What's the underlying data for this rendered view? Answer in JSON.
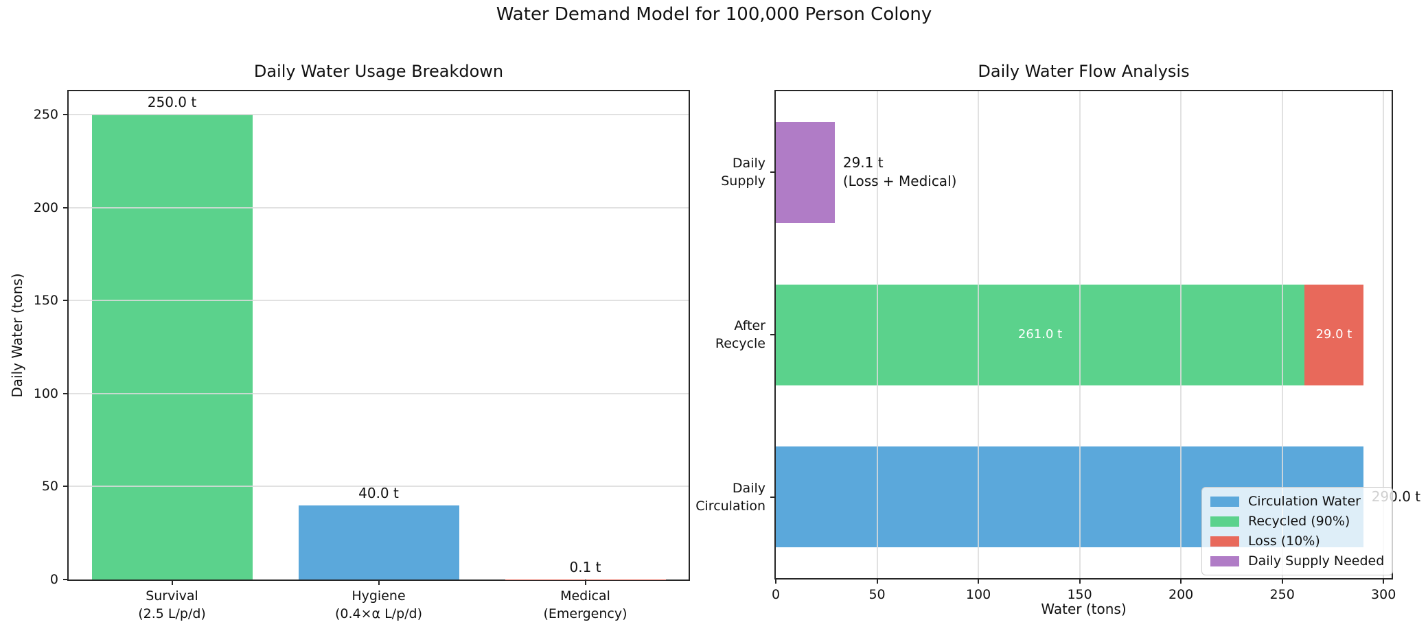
{
  "figure": {
    "title": "Water Demand Model for 100,000 Person Colony"
  },
  "colors": {
    "blue": "#5BA8DB",
    "green": "#5BD28C",
    "red": "#E8695B",
    "purple": "#B07CC6",
    "grid": "#DCDCDC",
    "spine": "#262626",
    "text": "#111111",
    "in_bar_text": "#FFFFFF",
    "legend_background": "rgba(255,255,255,0.8)",
    "legend_border": "#CCCCCC"
  },
  "chart_data": [
    {
      "type": "bar",
      "title": "Daily Water Usage Breakdown",
      "ylabel": "Daily Water (tons)",
      "xlabel": "",
      "categories": [
        "Survival\n(2.5 L/p/d)",
        "Hygiene\n(0.4×α L/p/d)",
        "Medical\n(Emergency)"
      ],
      "values": [
        250.0,
        40.0,
        0.1
      ],
      "bar_labels": [
        "250.0 t",
        "40.0 t",
        "0.1 t"
      ],
      "bar_colors": [
        "#5BD28C",
        "#5BA8DB",
        "#E8695B"
      ],
      "yticks": [
        0,
        50,
        100,
        150,
        200,
        250
      ],
      "ylim": [
        0,
        262.5
      ],
      "grid": "horizontal",
      "legend": null
    },
    {
      "type": "barh",
      "title": "Daily Water Flow Analysis",
      "xlabel": "Water (tons)",
      "ylabel": "",
      "categories": [
        "Daily\nSupply",
        "After\nRecycle",
        "Daily\nCirculation"
      ],
      "rows": [
        {
          "category": "Daily\nSupply",
          "segments": [
            {
              "legend": "Daily Supply Needed",
              "value": 29.1,
              "color": "#B07CC6",
              "label": null
            }
          ],
          "annotation": "29.1 t\n(Loss + Medical)"
        },
        {
          "category": "After\nRecycle",
          "segments": [
            {
              "legend": "Recycled (90%)",
              "value": 261.0,
              "color": "#5BD28C",
              "label": "261.0 t"
            },
            {
              "legend": "Loss (10%)",
              "value": 29.0,
              "color": "#E8695B",
              "label": "29.0 t"
            }
          ],
          "annotation": null
        },
        {
          "category": "Daily\nCirculation",
          "segments": [
            {
              "legend": "Circulation Water",
              "value": 290.0,
              "color": "#5BA8DB",
              "label": null
            }
          ],
          "annotation": "290.0 t"
        }
      ],
      "xticks": [
        0,
        50,
        100,
        150,
        200,
        250,
        300
      ],
      "xlim": [
        0,
        304
      ],
      "grid": "vertical",
      "legend": {
        "position": "lower right",
        "entries": [
          {
            "label": "Circulation Water",
            "color": "#5BA8DB"
          },
          {
            "label": "Recycled (90%)",
            "color": "#5BD28C"
          },
          {
            "label": "Loss (10%)",
            "color": "#E8695B"
          },
          {
            "label": "Daily Supply Needed",
            "color": "#B07CC6"
          }
        ]
      }
    }
  ]
}
